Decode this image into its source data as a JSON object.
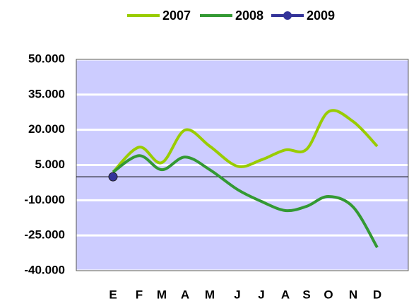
{
  "chart_data": {
    "type": "line",
    "categories": [
      "E",
      "F",
      "M",
      "A",
      "M",
      "J",
      "J",
      "A",
      "S",
      "O",
      "N",
      "D"
    ],
    "series": [
      {
        "name": "2007",
        "color": "#99cc00",
        "values": [
          2000,
          12600,
          6000,
          19900,
          13000,
          4500,
          7200,
          11400,
          11700,
          27700,
          23500,
          13000
        ]
      },
      {
        "name": "2008",
        "color": "#339933",
        "values": [
          2000,
          9000,
          3000,
          8400,
          3000,
          -5400,
          -10500,
          -14400,
          -12600,
          -8400,
          -12900,
          -30100
        ]
      },
      {
        "name": "2009",
        "color": "#333399",
        "values": [
          0,
          null,
          null,
          null,
          null,
          null,
          null,
          null,
          null,
          null,
          null,
          null
        ],
        "marker": true
      }
    ],
    "ylim": [
      -40000,
      50000
    ],
    "yticks": [
      {
        "value": -40000,
        "label": "-40.000"
      },
      {
        "value": -25000,
        "label": "-25.000"
      },
      {
        "value": -10000,
        "label": "-10.000"
      },
      {
        "value": 5000,
        "label": "5.000"
      },
      {
        "value": 20000,
        "label": "20.000"
      },
      {
        "value": 35000,
        "label": "35.000"
      },
      {
        "value": 50000,
        "label": "50.000"
      }
    ],
    "grid": true,
    "legend": "top",
    "smooth": true
  }
}
